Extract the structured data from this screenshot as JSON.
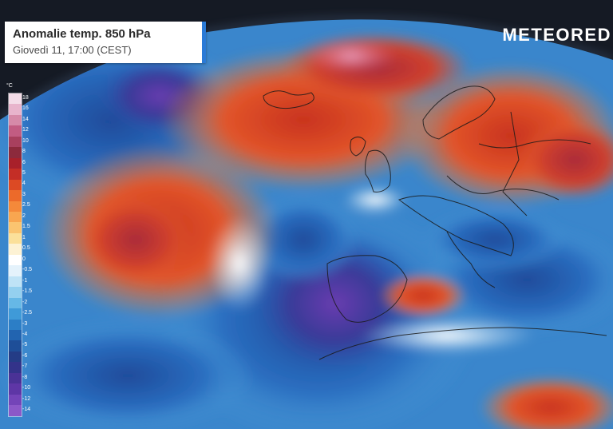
{
  "header": {
    "title": "Anomalie temp. 850 hPa",
    "subtitle": "Giovedì 11, 17:00 (CEST)"
  },
  "brand": {
    "name": "METEORED"
  },
  "legend": {
    "unit": "°C",
    "steps": [
      {
        "label": "18",
        "color": "#f4dce8"
      },
      {
        "label": "16",
        "color": "#e8b4cc"
      },
      {
        "label": "14",
        "color": "#d68aa8"
      },
      {
        "label": "12",
        "color": "#c25c82"
      },
      {
        "label": "10",
        "color": "#a8405e"
      },
      {
        "label": "8",
        "color": "#8c2a3c"
      },
      {
        "label": "6",
        "color": "#a8202a"
      },
      {
        "label": "5",
        "color": "#c42e26"
      },
      {
        "label": "4",
        "color": "#dc4a24"
      },
      {
        "label": "3",
        "color": "#ec6a2a"
      },
      {
        "label": "2.5",
        "color": "#f4893a"
      },
      {
        "label": "2",
        "color": "#f8a650"
      },
      {
        "label": "1.5",
        "color": "#fac470"
      },
      {
        "label": "1",
        "color": "#fbe09a"
      },
      {
        "label": "0.5",
        "color": "#fdf2d4"
      },
      {
        "label": "0",
        "color": "#ffffff"
      },
      {
        "label": "-0.5",
        "color": "#e4f2fb"
      },
      {
        "label": "-1",
        "color": "#bfe3f6"
      },
      {
        "label": "-1.5",
        "color": "#94d0ef"
      },
      {
        "label": "-2",
        "color": "#66b8e6"
      },
      {
        "label": "-2.5",
        "color": "#3f9ad8"
      },
      {
        "label": "-3",
        "color": "#2c7ec6"
      },
      {
        "label": "-4",
        "color": "#2264b0"
      },
      {
        "label": "-5",
        "color": "#1e4e98"
      },
      {
        "label": "-6",
        "color": "#243c86"
      },
      {
        "label": "-7",
        "color": "#33338a"
      },
      {
        "label": "-8",
        "color": "#4a3296"
      },
      {
        "label": "-10",
        "color": "#5e36a6"
      },
      {
        "label": "-12",
        "color": "#7444b8"
      },
      {
        "label": "-14",
        "color": "#8c58c8"
      }
    ]
  },
  "colors": {
    "space": "#151a24",
    "accent_bar": "#2a7ad6"
  }
}
